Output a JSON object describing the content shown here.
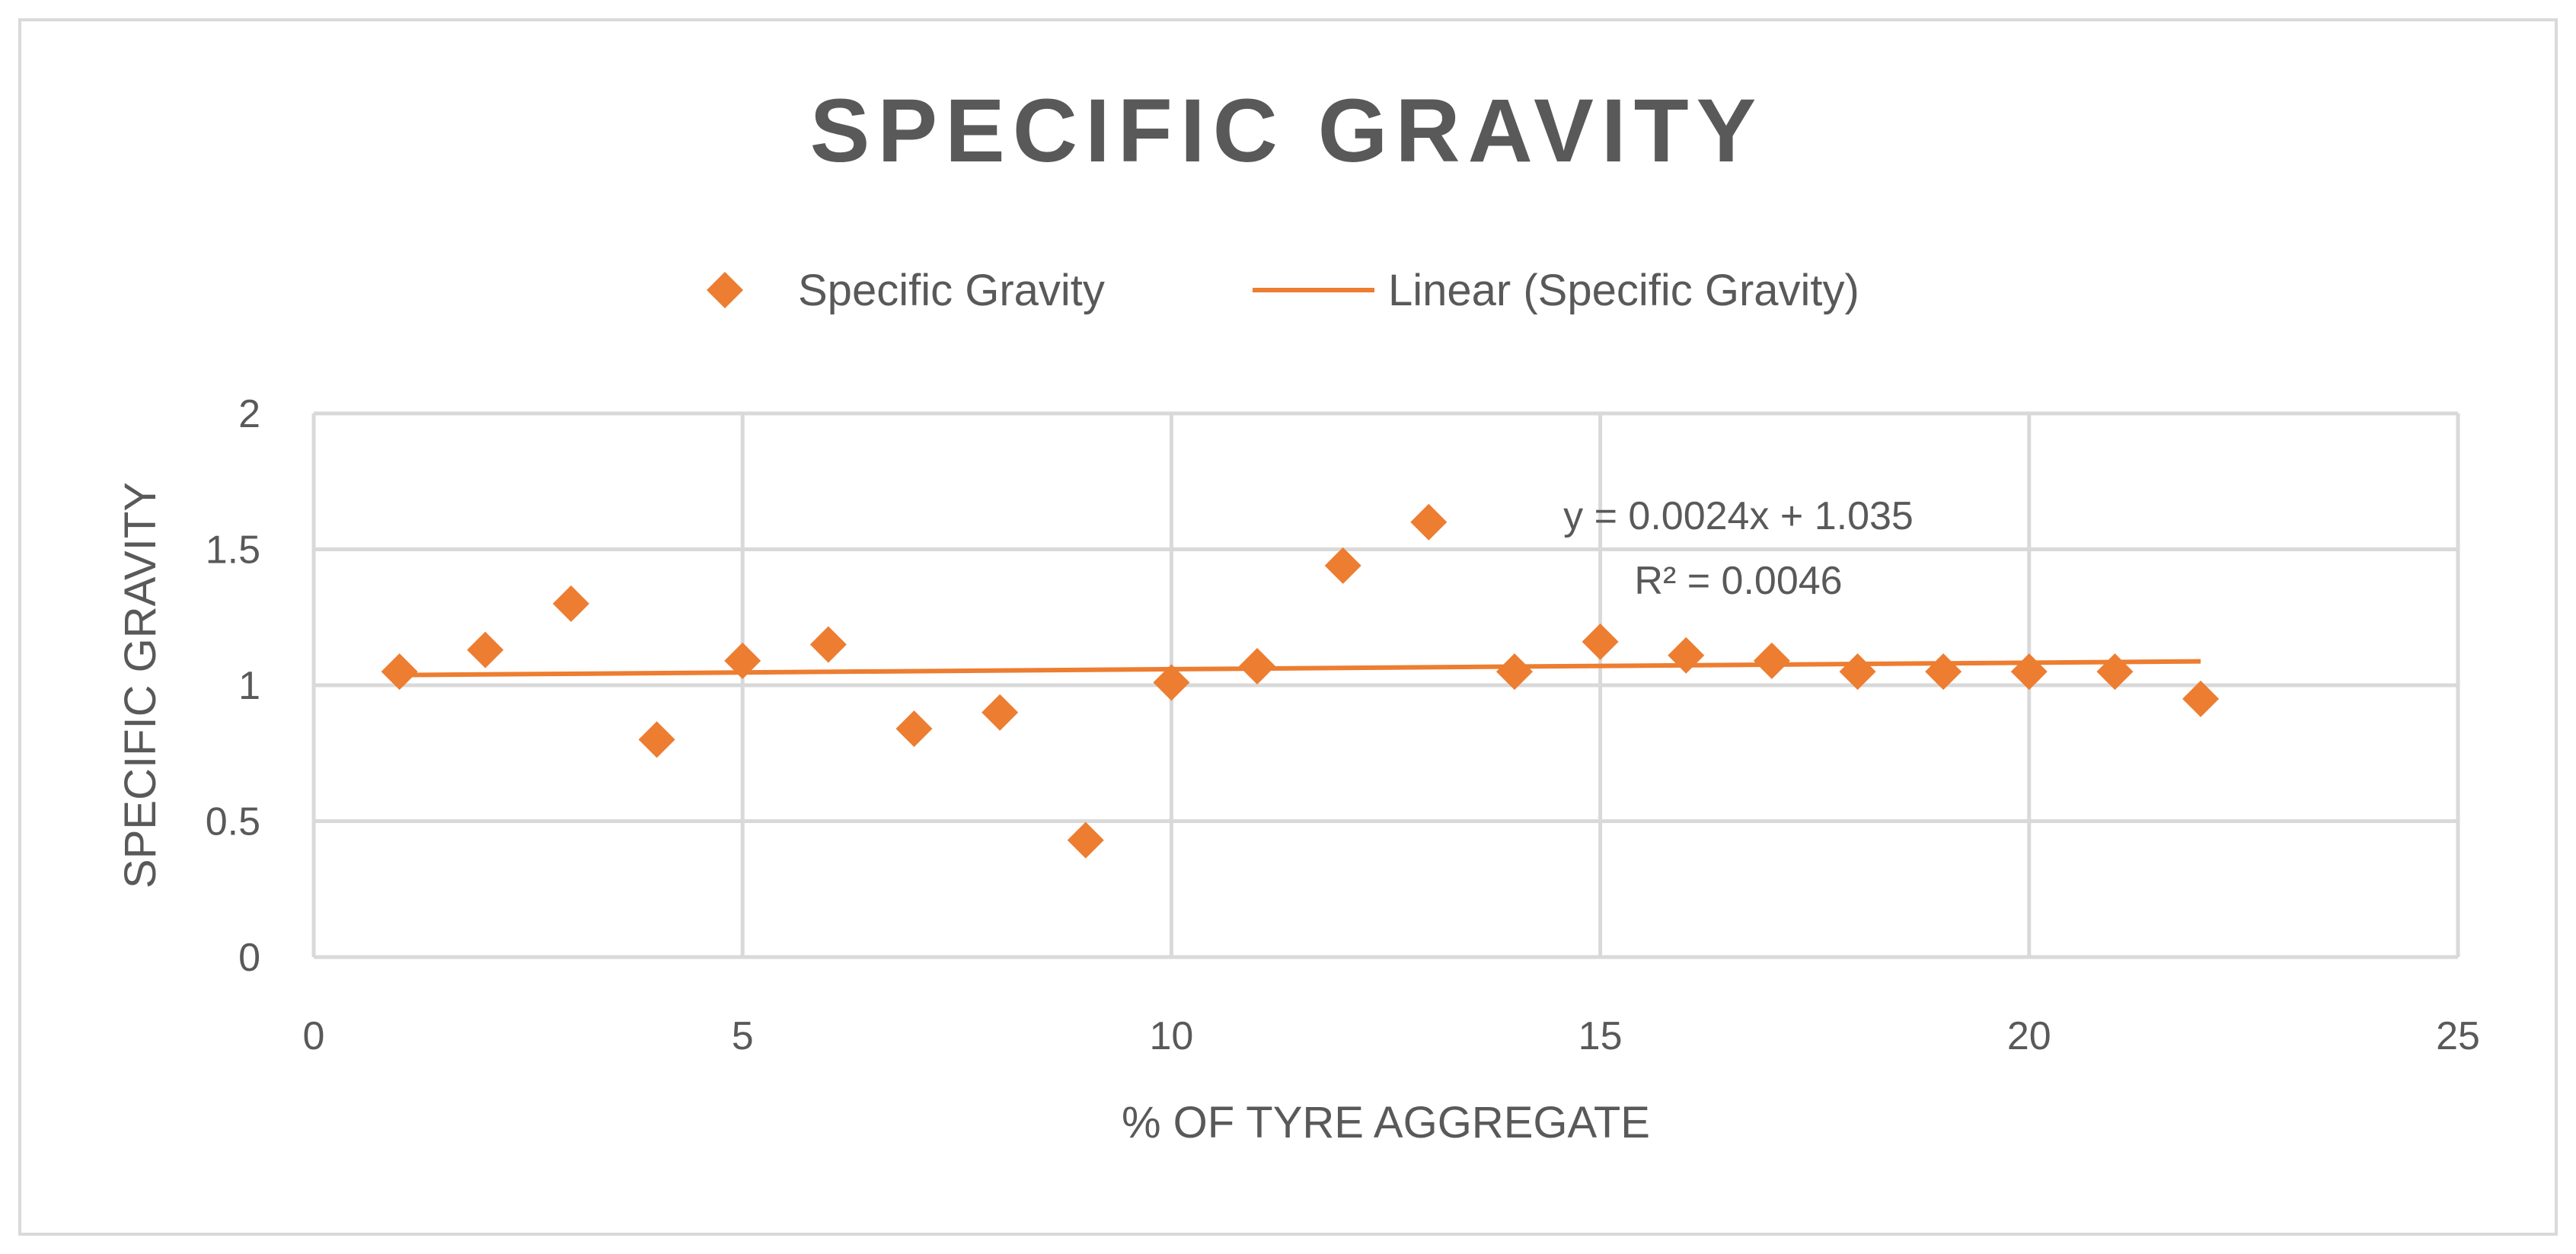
{
  "chart_data": {
    "type": "scatter",
    "title": "SPECIFIC GRAVITY",
    "xlabel": "% OF TYRE AGGREGATE",
    "ylabel": "SPECIFIC GRAVITY",
    "xlim": [
      0,
      25
    ],
    "ylim": [
      0,
      2
    ],
    "x_ticks": [
      0,
      5,
      10,
      15,
      20,
      25
    ],
    "y_ticks": [
      0,
      0.5,
      1,
      1.5,
      2
    ],
    "grid": true,
    "legend_position": "top",
    "series": [
      {
        "name": "Specific Gravity",
        "marker": "diamond",
        "color": "#ED7D31",
        "x": [
          1,
          2,
          3,
          4,
          5,
          6,
          7,
          8,
          9,
          10,
          11,
          12,
          13,
          14,
          15,
          16,
          17,
          18,
          19,
          20,
          21,
          22
        ],
        "y": [
          1.05,
          1.13,
          1.3,
          0.8,
          1.09,
          1.15,
          0.84,
          0.9,
          0.43,
          1.01,
          1.07,
          1.44,
          1.6,
          1.05,
          1.16,
          1.11,
          1.09,
          1.05,
          1.05,
          1.05,
          1.05,
          0.95
        ]
      }
    ],
    "trendline": {
      "name": "Linear (Specific Gravity)",
      "type": "linear",
      "color": "#ED7D31",
      "slope": 0.0024,
      "intercept": 1.035,
      "x_range": [
        1,
        22
      ],
      "equation_label": "y = 0.0024x + 1.035",
      "r2_label": "R² = 0.0046"
    }
  }
}
